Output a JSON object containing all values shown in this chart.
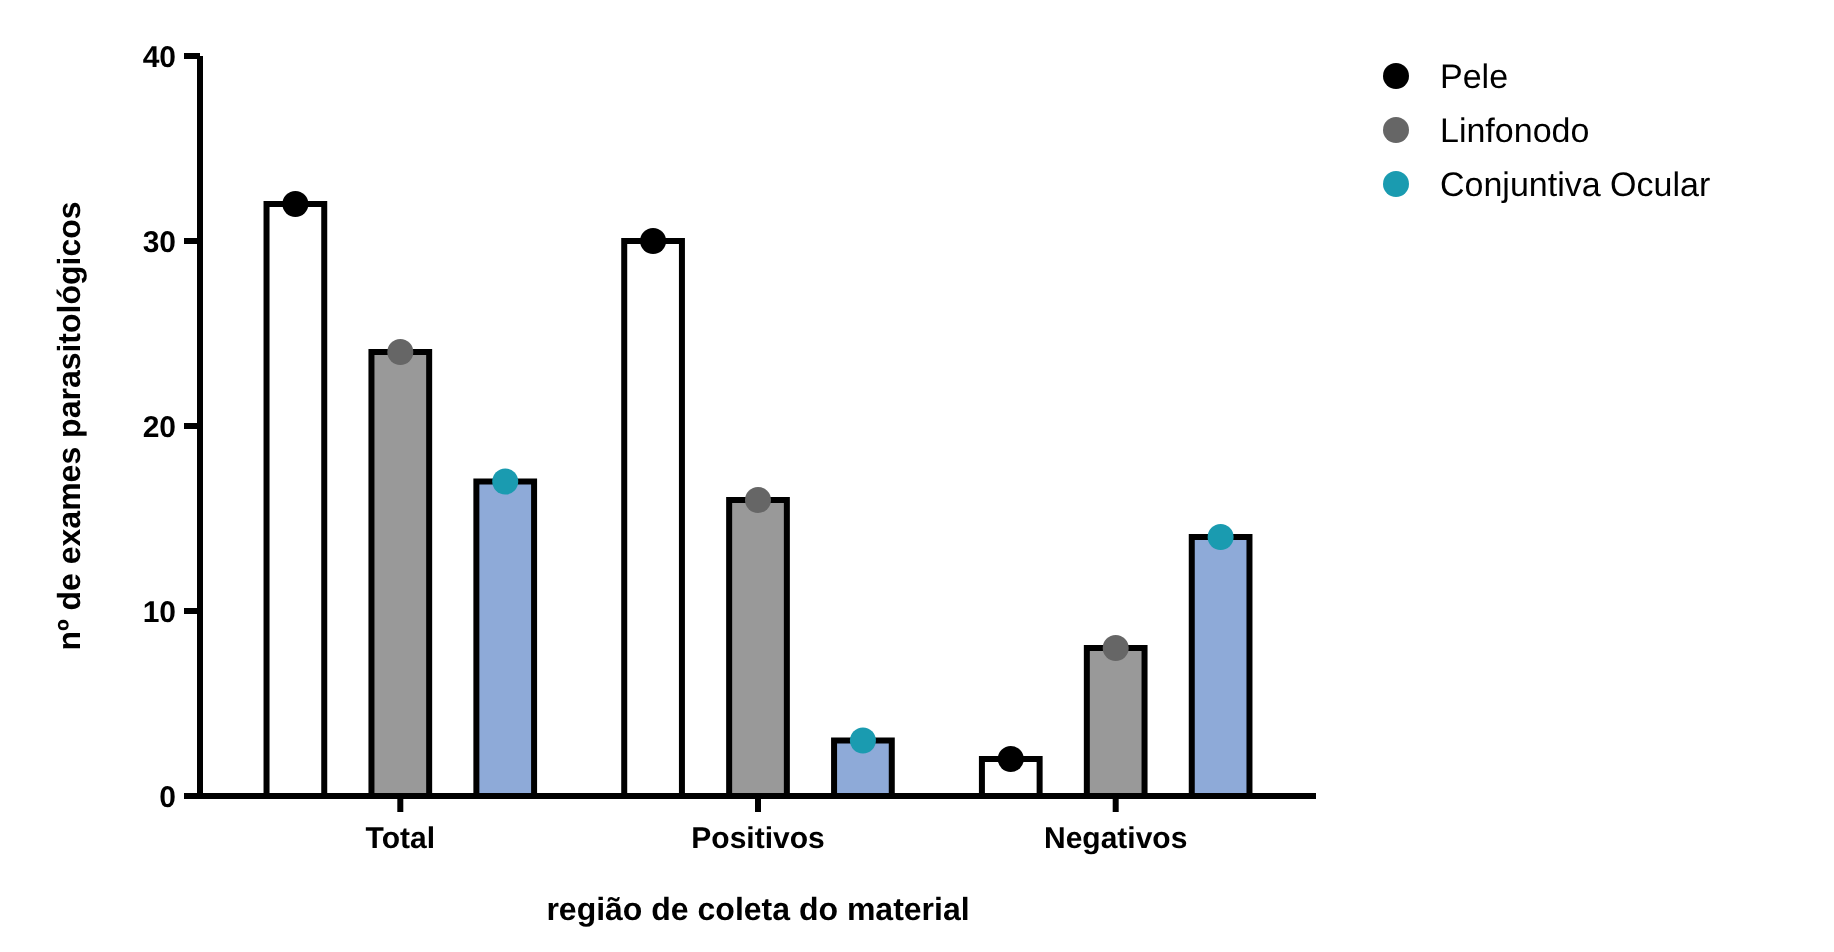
{
  "chart_data": {
    "type": "bar",
    "xlabel": "região de coleta do material",
    "ylabel": "nº de exames parasitológicos",
    "categories": [
      "Total",
      "Positivos",
      "Negativos"
    ],
    "ylim": [
      0,
      40
    ],
    "yticks": [
      0,
      10,
      20,
      30,
      40
    ],
    "grid": false,
    "legend": "top right",
    "series": [
      {
        "color": "#ffffff",
        "values": [
          32,
          30,
          2
        ]
      },
      {
        "color": "#999999",
        "values": [
          24,
          16,
          8
        ]
      },
      {
        "color": "#8eaad8",
        "values": [
          17,
          3,
          14
        ]
      },
      {
        "type": "scatter",
        "name": "Pele",
        "color": "#000000",
        "x": [
          "Total",
          "Positivos",
          "Negativos"
        ],
        "values": [
          32,
          30,
          2
        ]
      },
      {
        "type": "scatter",
        "name": "Linfonodo",
        "color": "#666666",
        "x": [
          "Total",
          "Positivos",
          "Negativos"
        ],
        "values": [
          24,
          16,
          8
        ]
      },
      {
        "type": "scatter",
        "name": "Conjuntiva Ocular",
        "color": "#1a9bb0",
        "x": [
          "Total",
          "Positivos",
          "Negativos"
        ],
        "values": [
          17,
          3,
          14
        ]
      }
    ]
  }
}
